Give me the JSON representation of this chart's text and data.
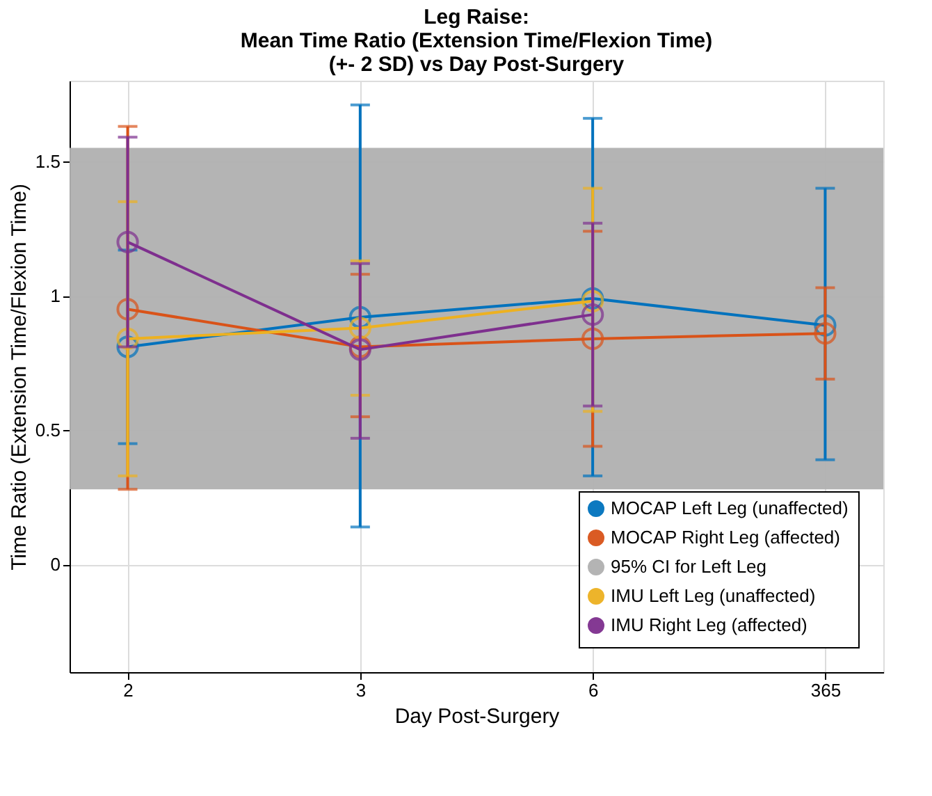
{
  "chart_data": {
    "type": "line",
    "title": "Leg Raise:\nMean Time Ratio (Extension Time/Flexion Time)\n(+- 2 SD) vs Day Post-Surgery",
    "xlabel": "Day Post-Surgery",
    "ylabel": "Time Ratio (Extension Time/Flexion Time)",
    "categories": [
      "2",
      "3",
      "6",
      "365"
    ],
    "series": [
      {
        "name": "MOCAP Left Leg (unaffected)",
        "color": "#0072bd",
        "values": [
          0.81,
          0.92,
          0.99,
          0.89
        ],
        "errors": [
          [
            0.45,
            1.17
          ],
          [
            0.14,
            1.71
          ],
          [
            0.33,
            1.66
          ],
          [
            0.39,
            1.4
          ]
        ]
      },
      {
        "name": "MOCAP Right Leg (affected)",
        "color": "#d95319",
        "values": [
          0.95,
          0.81,
          0.84,
          0.86
        ],
        "errors": [
          [
            0.28,
            1.63
          ],
          [
            0.55,
            1.08
          ],
          [
            0.44,
            1.24
          ],
          [
            0.69,
            1.03
          ]
        ]
      },
      {
        "name": "IMU Left Leg (unaffected)",
        "color": "#edb120",
        "values": [
          0.84,
          0.88,
          0.98,
          null
        ],
        "errors": [
          [
            0.33,
            1.35
          ],
          [
            0.63,
            1.13
          ],
          [
            0.57,
            1.4
          ],
          null
        ]
      },
      {
        "name": "IMU Right Leg (affected)",
        "color": "#7e2f8e",
        "values": [
          1.2,
          0.8,
          0.93,
          null
        ],
        "errors": [
          [
            0.81,
            1.59
          ],
          [
            0.47,
            1.12
          ],
          [
            0.59,
            1.27
          ],
          null
        ]
      }
    ],
    "bands": [
      {
        "axis": "y",
        "from": 0.28,
        "to": 1.55,
        "label": "95% CI for Left Leg",
        "color": "#b0b0b0"
      }
    ],
    "ylim": [
      -0.4,
      1.8
    ],
    "yticks": [
      0,
      0.5,
      1,
      1.5
    ],
    "grid": true,
    "legend": "bottom right",
    "marker": "circle",
    "line_style": "solid"
  }
}
